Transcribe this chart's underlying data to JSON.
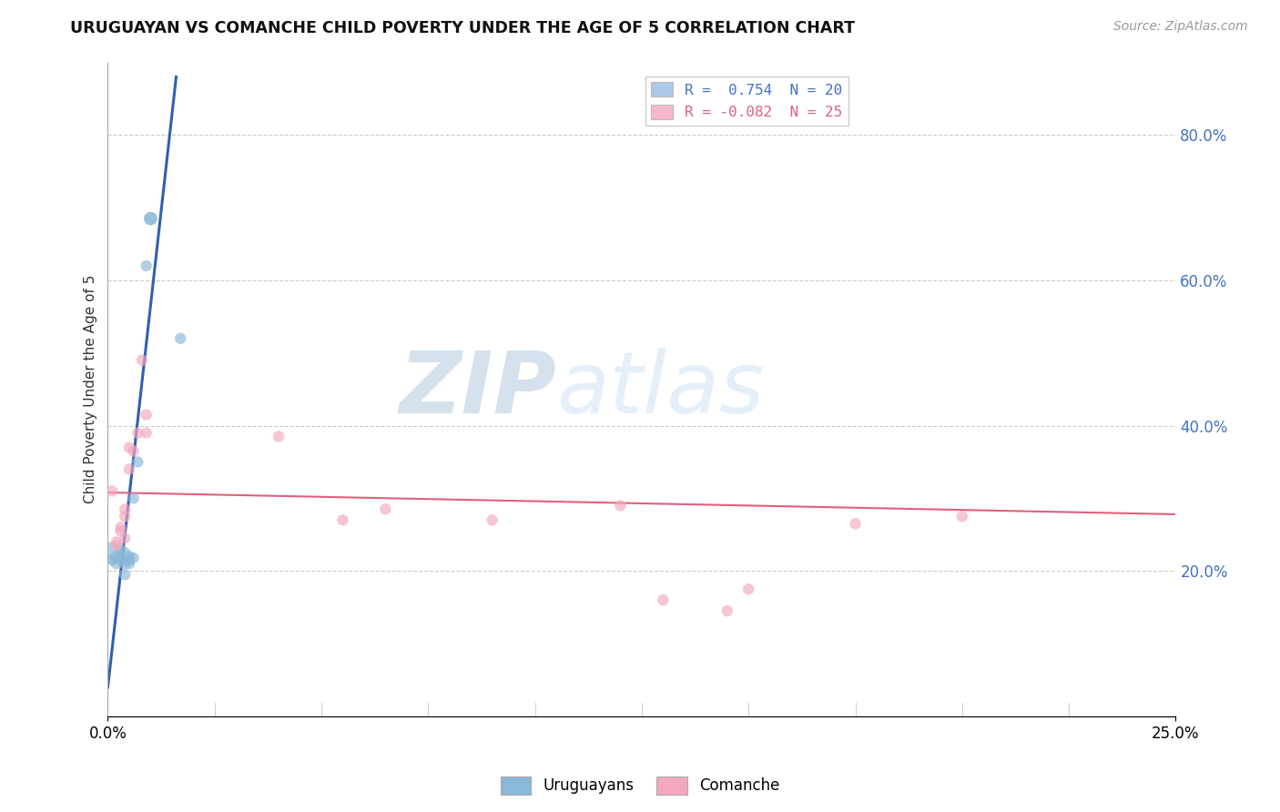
{
  "title": "URUGUAYAN VS COMANCHE CHILD POVERTY UNDER THE AGE OF 5 CORRELATION CHART",
  "source": "Source: ZipAtlas.com",
  "ylabel": "Child Poverty Under the Age of 5",
  "xlim": [
    0.0,
    0.25
  ],
  "ylim": [
    0.0,
    0.9
  ],
  "ytick_vals": [
    0.0,
    0.2,
    0.4,
    0.6,
    0.8
  ],
  "ytick_labels_right": [
    "",
    "20.0%",
    "40.0%",
    "60.0%",
    "80.0%"
  ],
  "xtick_labels": [
    "0.0%",
    "25.0%"
  ],
  "xtick_vals": [
    0.0,
    0.25
  ],
  "watermark_ZIP": "ZIP",
  "watermark_atlas": "atlas",
  "legend_r1": "R =  0.754  N = 20",
  "legend_r2": "R = -0.082  N = 25",
  "legend_color1": "#adc8e8",
  "legend_color2": "#f5b8cb",
  "uruguayan_color": "#89b8d8",
  "comanche_color": "#f4a8bc",
  "line_color_uruguayan": "#3060b0",
  "line_color_comanche": "#e06080",
  "uruguayan_points": [
    [
      0.001,
      0.225
    ],
    [
      0.001,
      0.215
    ],
    [
      0.002,
      0.22
    ],
    [
      0.002,
      0.21
    ],
    [
      0.003,
      0.23
    ],
    [
      0.003,
      0.215
    ],
    [
      0.003,
      0.218
    ],
    [
      0.004,
      0.225
    ],
    [
      0.004,
      0.21
    ],
    [
      0.004,
      0.195
    ],
    [
      0.005,
      0.22
    ],
    [
      0.005,
      0.215
    ],
    [
      0.005,
      0.21
    ],
    [
      0.006,
      0.218
    ],
    [
      0.006,
      0.3
    ],
    [
      0.007,
      0.35
    ],
    [
      0.009,
      0.62
    ],
    [
      0.01,
      0.685
    ],
    [
      0.01,
      0.685
    ],
    [
      0.017,
      0.52
    ]
  ],
  "uruguayan_sizes": [
    300,
    80,
    80,
    80,
    80,
    80,
    80,
    80,
    80,
    80,
    80,
    80,
    80,
    80,
    80,
    80,
    80,
    110,
    110,
    80
  ],
  "comanche_points": [
    [
      0.001,
      0.31
    ],
    [
      0.002,
      0.24
    ],
    [
      0.002,
      0.235
    ],
    [
      0.003,
      0.26
    ],
    [
      0.003,
      0.255
    ],
    [
      0.004,
      0.245
    ],
    [
      0.004,
      0.285
    ],
    [
      0.004,
      0.275
    ],
    [
      0.005,
      0.34
    ],
    [
      0.005,
      0.37
    ],
    [
      0.006,
      0.365
    ],
    [
      0.007,
      0.39
    ],
    [
      0.008,
      0.49
    ],
    [
      0.009,
      0.39
    ],
    [
      0.009,
      0.415
    ],
    [
      0.04,
      0.385
    ],
    [
      0.055,
      0.27
    ],
    [
      0.065,
      0.285
    ],
    [
      0.09,
      0.27
    ],
    [
      0.12,
      0.29
    ],
    [
      0.13,
      0.16
    ],
    [
      0.145,
      0.145
    ],
    [
      0.15,
      0.175
    ],
    [
      0.175,
      0.265
    ],
    [
      0.2,
      0.275
    ]
  ],
  "comanche_sizes": [
    80,
    80,
    80,
    80,
    80,
    80,
    80,
    80,
    80,
    80,
    80,
    80,
    80,
    80,
    80,
    80,
    80,
    80,
    80,
    80,
    80,
    80,
    80,
    80,
    80
  ],
  "uruguayan_line_x": [
    0.0,
    0.016
  ],
  "uruguayan_line_y": [
    0.04,
    0.88
  ],
  "comanche_line_x": [
    0.0,
    0.25
  ],
  "comanche_line_y": [
    0.308,
    0.278
  ]
}
